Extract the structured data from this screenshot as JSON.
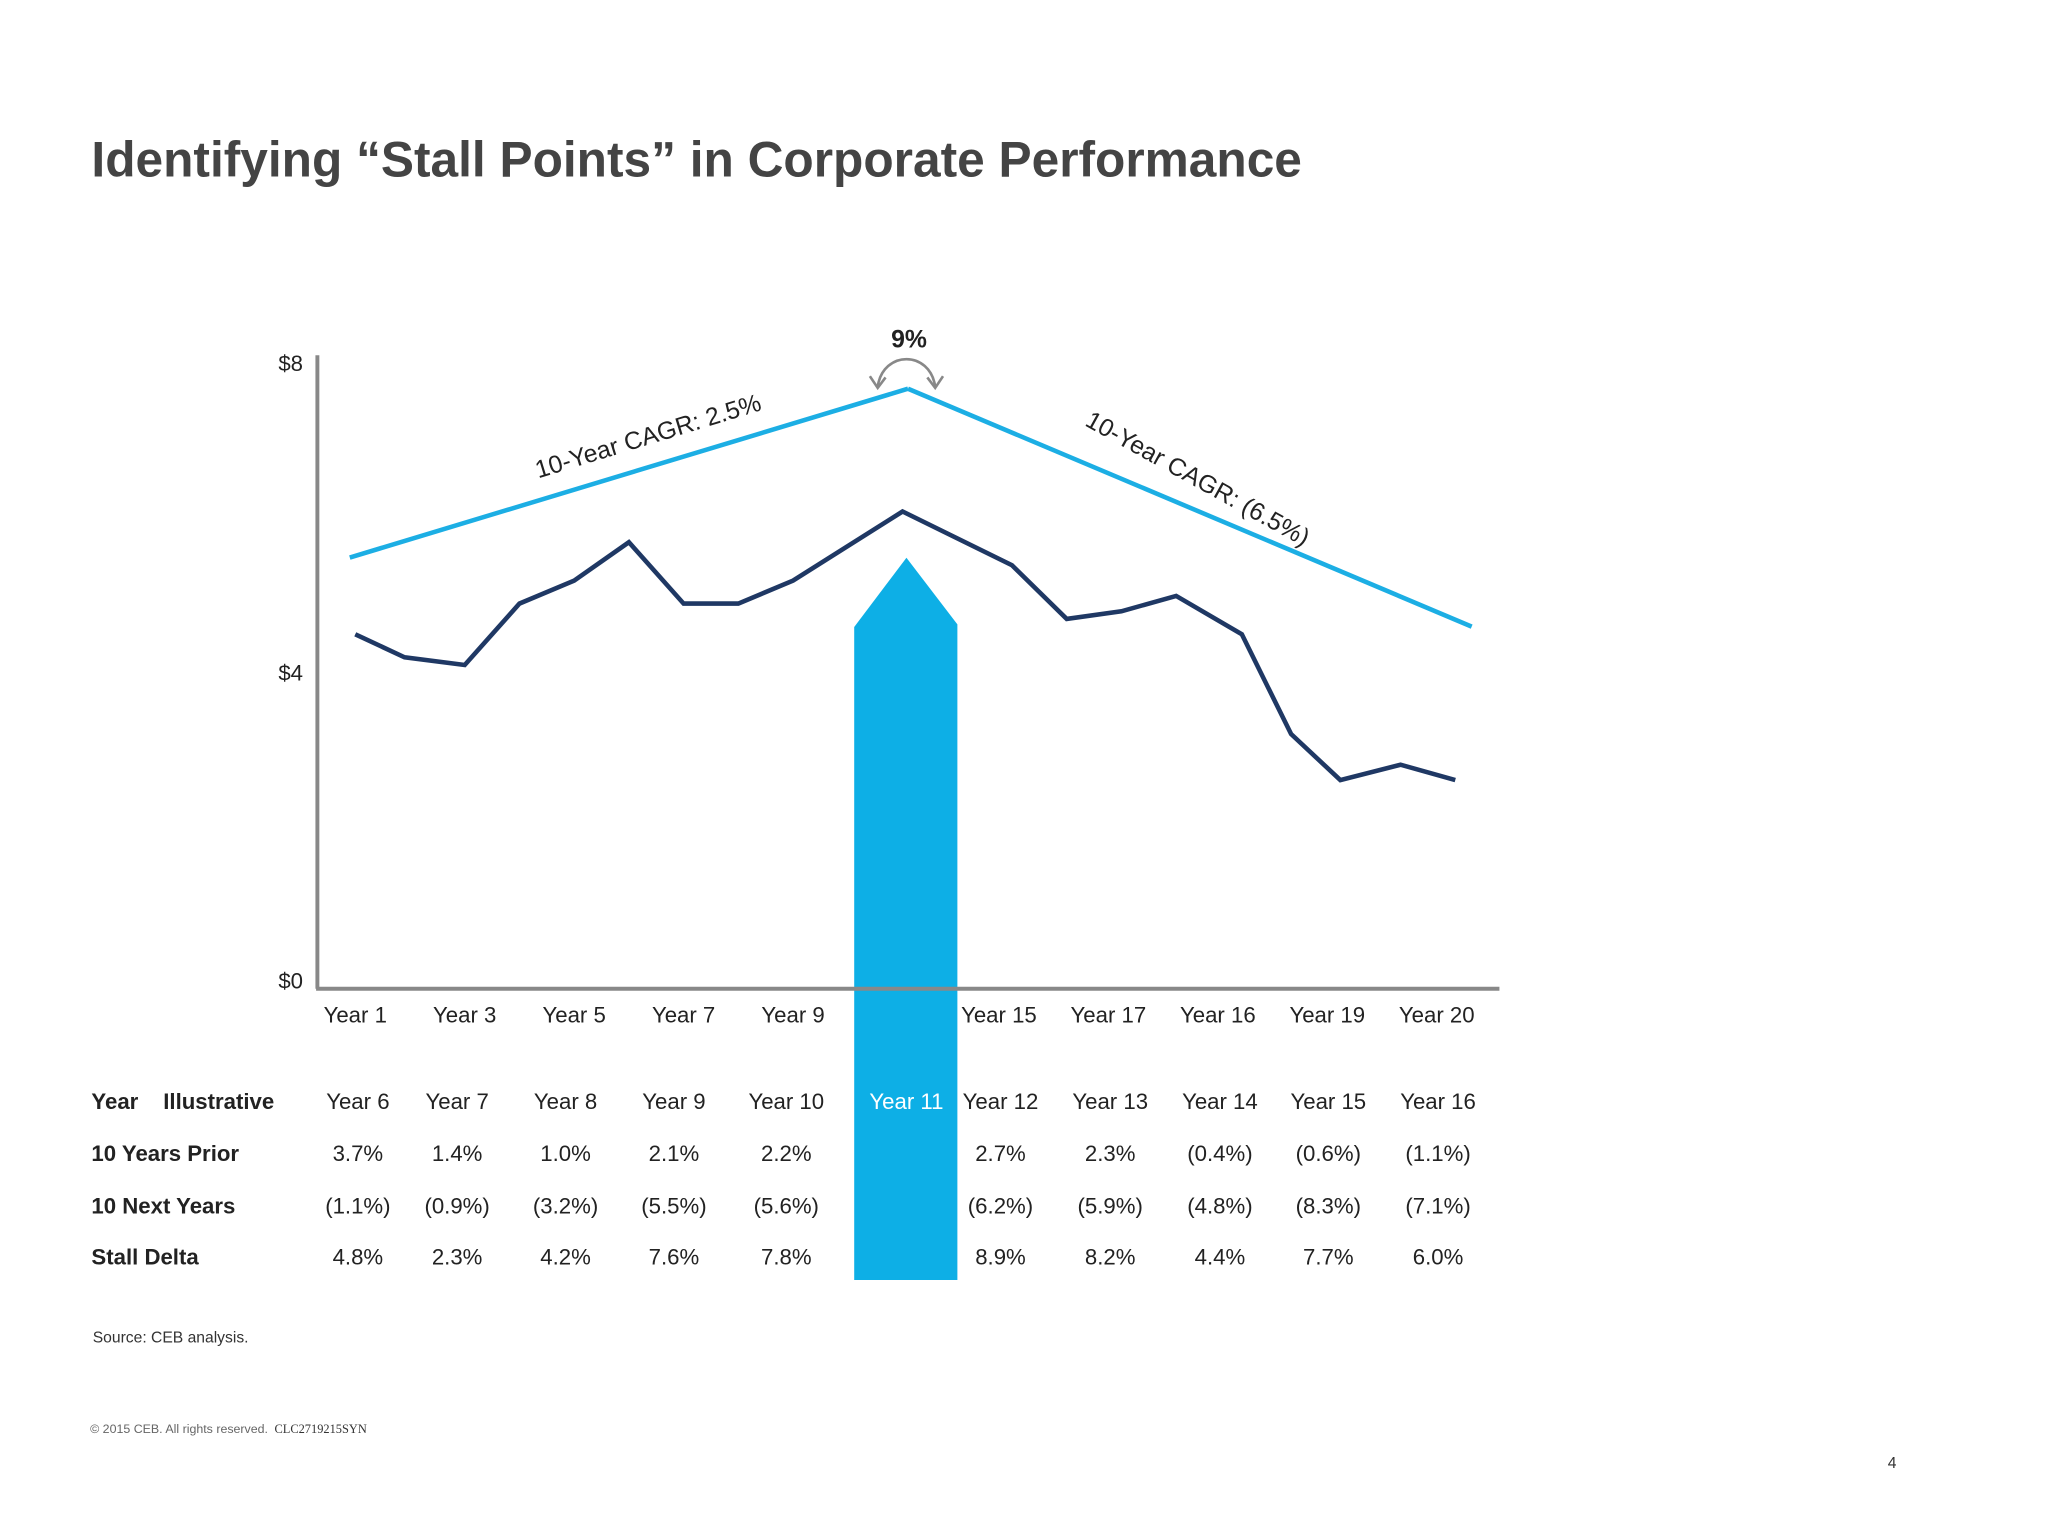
{
  "title": "Identifying “Stall Points” in Corporate Performance",
  "colors": {
    "highlight": "#0DAFE6",
    "trend": "#1CAEE4",
    "series": "#1F3864",
    "axis": "#888888",
    "title": "#444444"
  },
  "chart_data": {
    "type": "line",
    "ylim": [
      0,
      8
    ],
    "yticks": [
      "$0",
      "$4",
      "$8"
    ],
    "ytick_values": [
      0,
      4,
      8
    ],
    "xlabels": [
      "Year 1",
      "Year 3",
      "Year 5",
      "Year 7",
      "Year 9",
      "",
      "Year 15",
      "Year 17",
      "Year 16",
      "Year 19",
      "Year 20"
    ],
    "series": [
      {
        "x": [
          1,
          1.9,
          3,
          4,
          5,
          6,
          7,
          8,
          9,
          11,
          13,
          14,
          15,
          16,
          17.2,
          18.1,
          19,
          20.1,
          21.1
        ],
        "y": [
          4.5,
          4.2,
          4.1,
          4.9,
          5.2,
          5.7,
          4.9,
          4.9,
          5.2,
          6.1,
          5.4,
          4.7,
          4.8,
          5.0,
          4.5,
          3.2,
          2.6,
          2.8,
          2.6
        ]
      }
    ],
    "trend_lines": [
      {
        "x": [
          0.9,
          11.1
        ],
        "y": [
          5.5,
          7.7
        ],
        "label": "10-Year CAGR: 2.5%"
      },
      {
        "x": [
          11.1,
          21.4
        ],
        "y": [
          7.7,
          4.6
        ],
        "label": "10-Year CAGR: (6.5%)"
      }
    ],
    "peak_annotation": "9%",
    "highlight_column": "Year 11"
  },
  "table": {
    "header_label": "Year",
    "header_sublabel": "Illustrative",
    "columns": [
      "Year 6",
      "Year 7",
      "Year 8",
      "Year 9",
      "Year 10",
      "Year 11",
      "Year 12",
      "Year 13",
      "Year 14",
      "Year 15",
      "Year 16"
    ],
    "rows": [
      {
        "label": "10 Years Prior",
        "values": [
          "3.7%",
          "1.4%",
          "1.0%",
          "2.1%",
          "2.2%",
          "",
          "2.7%",
          "2.3%",
          "(0.4%)",
          "(0.6%)",
          "(1.1%)"
        ]
      },
      {
        "label": "10 Next Years",
        "values": [
          "(1.1%)",
          "(0.9%)",
          "(3.2%)",
          "(5.5%)",
          "(5.6%)",
          "",
          "(6.2%)",
          "(5.9%)",
          "(4.8%)",
          "(8.3%)",
          "(7.1%)"
        ]
      },
      {
        "label": "Stall Delta",
        "values": [
          "4.8%",
          "2.3%",
          "4.2%",
          "7.6%",
          "7.8%",
          "",
          "8.9%",
          "8.2%",
          "4.4%",
          "7.7%",
          "6.0%"
        ]
      }
    ]
  },
  "source": "Source: CEB analysis.",
  "copyright": "© 2015 CEB. All rights reserved.",
  "doc_code": "CLC2719215SYN",
  "page_number": "4"
}
